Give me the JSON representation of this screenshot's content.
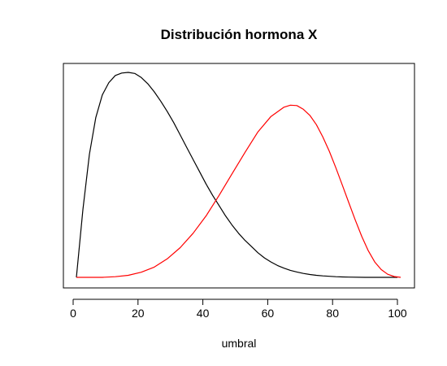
{
  "chart_data": {
    "type": "line",
    "title": "Distribución hormona X",
    "xlabel": "umbral",
    "ylabel": "",
    "xlim": [
      0,
      103
    ],
    "x_ticks": [
      0,
      20,
      40,
      60,
      80,
      100
    ],
    "y_axis_visible": false,
    "grid": false,
    "legend": "none",
    "series": [
      {
        "color": "#000000",
        "points": [
          [
            1,
            0.0
          ],
          [
            3,
            0.33
          ],
          [
            5,
            0.6
          ],
          [
            7,
            0.78
          ],
          [
            9,
            0.89
          ],
          [
            11,
            0.95
          ],
          [
            13,
            0.985
          ],
          [
            15,
            0.997
          ],
          [
            17,
            1.0
          ],
          [
            19,
            0.995
          ],
          [
            21,
            0.975
          ],
          [
            23,
            0.945
          ],
          [
            25,
            0.905
          ],
          [
            27,
            0.86
          ],
          [
            29,
            0.81
          ],
          [
            31,
            0.755
          ],
          [
            33,
            0.695
          ],
          [
            35,
            0.635
          ],
          [
            37,
            0.575
          ],
          [
            39,
            0.515
          ],
          [
            41,
            0.455
          ],
          [
            43,
            0.4
          ],
          [
            45,
            0.35
          ],
          [
            47,
            0.3
          ],
          [
            49,
            0.255
          ],
          [
            51,
            0.215
          ],
          [
            53,
            0.18
          ],
          [
            55,
            0.15
          ],
          [
            57,
            0.12
          ],
          [
            59,
            0.095
          ],
          [
            61,
            0.075
          ],
          [
            63,
            0.058
          ],
          [
            65,
            0.045
          ],
          [
            67,
            0.034
          ],
          [
            69,
            0.026
          ],
          [
            71,
            0.019
          ],
          [
            73,
            0.014
          ],
          [
            75,
            0.01
          ],
          [
            77,
            0.007
          ],
          [
            79,
            0.005
          ],
          [
            81,
            0.003
          ],
          [
            83,
            0.002
          ],
          [
            85,
            0.001
          ],
          [
            90,
            0.0
          ],
          [
            95,
            0.0
          ],
          [
            100,
            0.0
          ]
        ]
      },
      {
        "color": "#ff0000",
        "points": [
          [
            1,
            0.0
          ],
          [
            5,
            0.0
          ],
          [
            9,
            0.0
          ],
          [
            13,
            0.003
          ],
          [
            17,
            0.01
          ],
          [
            21,
            0.025
          ],
          [
            25,
            0.05
          ],
          [
            29,
            0.09
          ],
          [
            33,
            0.145
          ],
          [
            37,
            0.215
          ],
          [
            41,
            0.3
          ],
          [
            45,
            0.4
          ],
          [
            49,
            0.505
          ],
          [
            53,
            0.61
          ],
          [
            57,
            0.71
          ],
          [
            61,
            0.785
          ],
          [
            65,
            0.83
          ],
          [
            67,
            0.84
          ],
          [
            69,
            0.838
          ],
          [
            71,
            0.82
          ],
          [
            73,
            0.79
          ],
          [
            75,
            0.745
          ],
          [
            77,
            0.685
          ],
          [
            79,
            0.615
          ],
          [
            81,
            0.535
          ],
          [
            83,
            0.45
          ],
          [
            85,
            0.365
          ],
          [
            87,
            0.28
          ],
          [
            89,
            0.2
          ],
          [
            91,
            0.13
          ],
          [
            93,
            0.075
          ],
          [
            95,
            0.038
          ],
          [
            97,
            0.015
          ],
          [
            99,
            0.004
          ],
          [
            101,
            0.0
          ]
        ]
      }
    ]
  }
}
